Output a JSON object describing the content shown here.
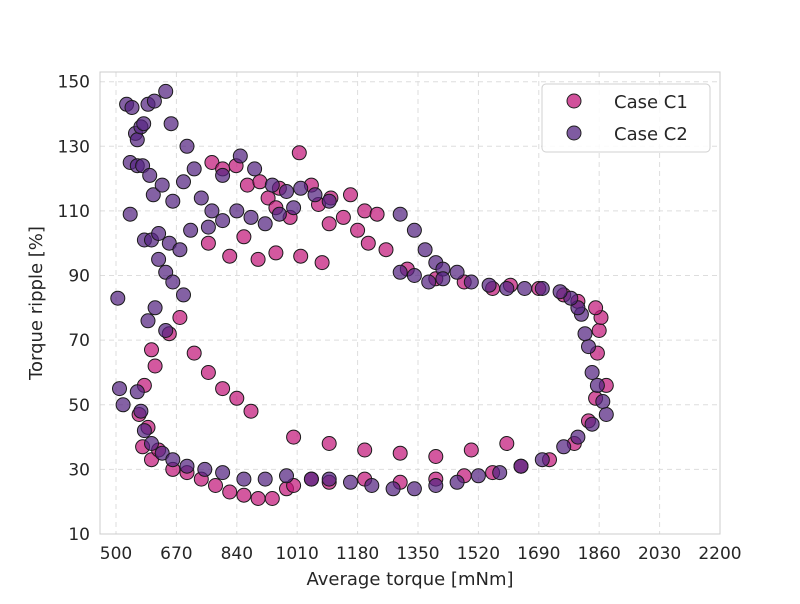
{
  "chart_data": {
    "type": "scatter",
    "title": "",
    "xlabel": "Average torque [mNm]",
    "ylabel": "Torque ripple [%]",
    "xlim": [
      455,
      2200
    ],
    "ylim": [
      10,
      153
    ],
    "xticks": [
      500,
      670,
      840,
      1010,
      1180,
      1350,
      1520,
      1690,
      1860,
      2030,
      2200
    ],
    "yticks": [
      10,
      30,
      50,
      70,
      90,
      110,
      130,
      150
    ],
    "grid": true,
    "legend_position": "top-right",
    "series": [
      {
        "name": "Case C1",
        "color": "#c2177a",
        "points": [
          [
            770,
            125
          ],
          [
            800,
            123
          ],
          [
            838,
            124
          ],
          [
            870,
            118
          ],
          [
            905,
            119
          ],
          [
            928,
            114
          ],
          [
            960,
            117
          ],
          [
            1016,
            128
          ],
          [
            1050,
            118
          ],
          [
            1070,
            112
          ],
          [
            1105,
            114
          ],
          [
            1160,
            115
          ],
          [
            1200,
            110
          ],
          [
            1235,
            109
          ],
          [
            1100,
            106
          ],
          [
            1180,
            104
          ],
          [
            1210,
            100
          ],
          [
            1140,
            108
          ],
          [
            990,
            108
          ],
          [
            950,
            111
          ],
          [
            600,
            67
          ],
          [
            610,
            62
          ],
          [
            580,
            56
          ],
          [
            565,
            47
          ],
          [
            590,
            43
          ],
          [
            575,
            37
          ],
          [
            600,
            33
          ],
          [
            620,
            36
          ],
          [
            660,
            30
          ],
          [
            700,
            29
          ],
          [
            740,
            27
          ],
          [
            780,
            25
          ],
          [
            820,
            23
          ],
          [
            860,
            22
          ],
          [
            900,
            21
          ],
          [
            940,
            21
          ],
          [
            980,
            24
          ],
          [
            1000,
            25
          ],
          [
            1050,
            27
          ],
          [
            1100,
            26
          ],
          [
            1200,
            27
          ],
          [
            1300,
            26
          ],
          [
            1400,
            27
          ],
          [
            1480,
            28
          ],
          [
            1560,
            29
          ],
          [
            1640,
            31
          ],
          [
            1720,
            33
          ],
          [
            1790,
            38
          ],
          [
            1830,
            45
          ],
          [
            1850,
            52
          ],
          [
            1855,
            66
          ],
          [
            1860,
            73
          ],
          [
            1865,
            77
          ],
          [
            1880,
            56
          ],
          [
            1850,
            80
          ],
          [
            1800,
            82
          ],
          [
            1760,
            84
          ],
          [
            1690,
            86
          ],
          [
            1610,
            87
          ],
          [
            1560,
            86
          ],
          [
            1480,
            88
          ],
          [
            1400,
            89
          ],
          [
            1320,
            92
          ],
          [
            1260,
            98
          ],
          [
            650,
            72
          ],
          [
            680,
            77
          ],
          [
            720,
            66
          ],
          [
            760,
            60
          ],
          [
            800,
            55
          ],
          [
            840,
            52
          ],
          [
            880,
            48
          ],
          [
            900,
            95
          ],
          [
            950,
            97
          ],
          [
            1020,
            96
          ],
          [
            1080,
            94
          ],
          [
            760,
            100
          ],
          [
            820,
            96
          ],
          [
            860,
            102
          ],
          [
            1000,
            40
          ],
          [
            1100,
            38
          ],
          [
            1200,
            36
          ],
          [
            1300,
            35
          ],
          [
            1400,
            34
          ],
          [
            1500,
            36
          ],
          [
            1600,
            38
          ]
        ]
      },
      {
        "name": "Case C2",
        "color": "#542481",
        "points": [
          [
            505,
            83
          ],
          [
            510,
            55
          ],
          [
            520,
            50
          ],
          [
            530,
            143
          ],
          [
            545,
            142
          ],
          [
            555,
            134
          ],
          [
            560,
            132
          ],
          [
            570,
            136
          ],
          [
            578,
            137
          ],
          [
            590,
            143
          ],
          [
            608,
            144
          ],
          [
            640,
            147
          ],
          [
            655,
            137
          ],
          [
            700,
            130
          ],
          [
            540,
            125
          ],
          [
            560,
            124
          ],
          [
            575,
            124
          ],
          [
            595,
            121
          ],
          [
            605,
            115
          ],
          [
            630,
            118
          ],
          [
            660,
            113
          ],
          [
            690,
            119
          ],
          [
            720,
            123
          ],
          [
            740,
            114
          ],
          [
            770,
            110
          ],
          [
            800,
            121
          ],
          [
            850,
            127
          ],
          [
            890,
            123
          ],
          [
            540,
            109
          ],
          [
            580,
            101
          ],
          [
            600,
            101
          ],
          [
            620,
            103
          ],
          [
            650,
            100
          ],
          [
            680,
            98
          ],
          [
            710,
            104
          ],
          [
            620,
            95
          ],
          [
            640,
            91
          ],
          [
            660,
            88
          ],
          [
            690,
            84
          ],
          [
            590,
            76
          ],
          [
            610,
            80
          ],
          [
            640,
            73
          ],
          [
            1300,
            109
          ],
          [
            1340,
            104
          ],
          [
            1370,
            98
          ],
          [
            1400,
            94
          ],
          [
            1420,
            92
          ],
          [
            1880,
            47
          ],
          [
            1870,
            51
          ],
          [
            1855,
            56
          ],
          [
            1840,
            60
          ],
          [
            1830,
            68
          ],
          [
            1820,
            72
          ],
          [
            1810,
            78
          ],
          [
            1800,
            80
          ],
          [
            1780,
            83
          ],
          [
            1750,
            85
          ],
          [
            1700,
            86
          ],
          [
            1650,
            86
          ],
          [
            1600,
            86
          ],
          [
            1550,
            87
          ],
          [
            1500,
            88
          ],
          [
            1460,
            91
          ],
          [
            1420,
            89
          ],
          [
            1380,
            88
          ],
          [
            1340,
            90
          ],
          [
            1300,
            91
          ],
          [
            560,
            54
          ],
          [
            570,
            48
          ],
          [
            580,
            42
          ],
          [
            600,
            38
          ],
          [
            630,
            35
          ],
          [
            660,
            33
          ],
          [
            700,
            31
          ],
          [
            750,
            30
          ],
          [
            800,
            29
          ],
          [
            860,
            27
          ],
          [
            920,
            27
          ],
          [
            980,
            28
          ],
          [
            1050,
            27
          ],
          [
            1100,
            27
          ],
          [
            1160,
            26
          ],
          [
            1220,
            25
          ],
          [
            1280,
            24
          ],
          [
            1340,
            24
          ],
          [
            1400,
            25
          ],
          [
            1460,
            26
          ],
          [
            1520,
            28
          ],
          [
            1580,
            29
          ],
          [
            1640,
            31
          ],
          [
            1700,
            33
          ],
          [
            1760,
            37
          ],
          [
            1800,
            40
          ],
          [
            1840,
            44
          ],
          [
            940,
            118
          ],
          [
            980,
            116
          ],
          [
            1020,
            117
          ],
          [
            1060,
            115
          ],
          [
            1100,
            113
          ],
          [
            1000,
            111
          ],
          [
            960,
            109
          ],
          [
            920,
            106
          ],
          [
            880,
            108
          ],
          [
            840,
            110
          ],
          [
            800,
            107
          ],
          [
            760,
            105
          ]
        ]
      }
    ]
  }
}
